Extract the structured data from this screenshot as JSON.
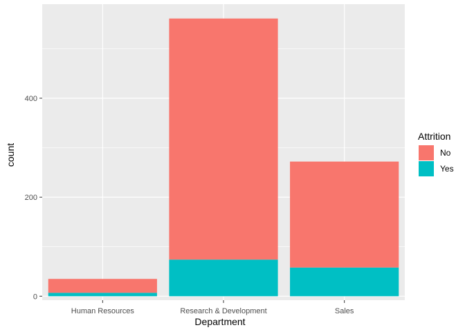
{
  "chart_data": {
    "type": "bar",
    "stacked": true,
    "xlabel": "Department",
    "ylabel": "count",
    "categories": [
      "Human Resources",
      "Research & Development",
      "Sales"
    ],
    "series": [
      {
        "name": "Yes",
        "values": [
          7,
          74,
          58
        ],
        "color": "#00BFC4"
      },
      {
        "name": "No",
        "values": [
          28,
          487,
          214
        ],
        "color": "#F8766D"
      }
    ],
    "ylim": [
      -8,
      590
    ],
    "yticks": [
      0,
      200,
      400
    ],
    "ytick_labels": [
      "0",
      "200",
      "400"
    ],
    "grid": true,
    "legend": {
      "title": "Attrition",
      "position": "right",
      "items": [
        {
          "label": "No",
          "color": "#F8766D"
        },
        {
          "label": "Yes",
          "color": "#00BFC4"
        }
      ]
    },
    "panel_background": "#EBEBEB",
    "grid_color": "#FFFFFF"
  }
}
